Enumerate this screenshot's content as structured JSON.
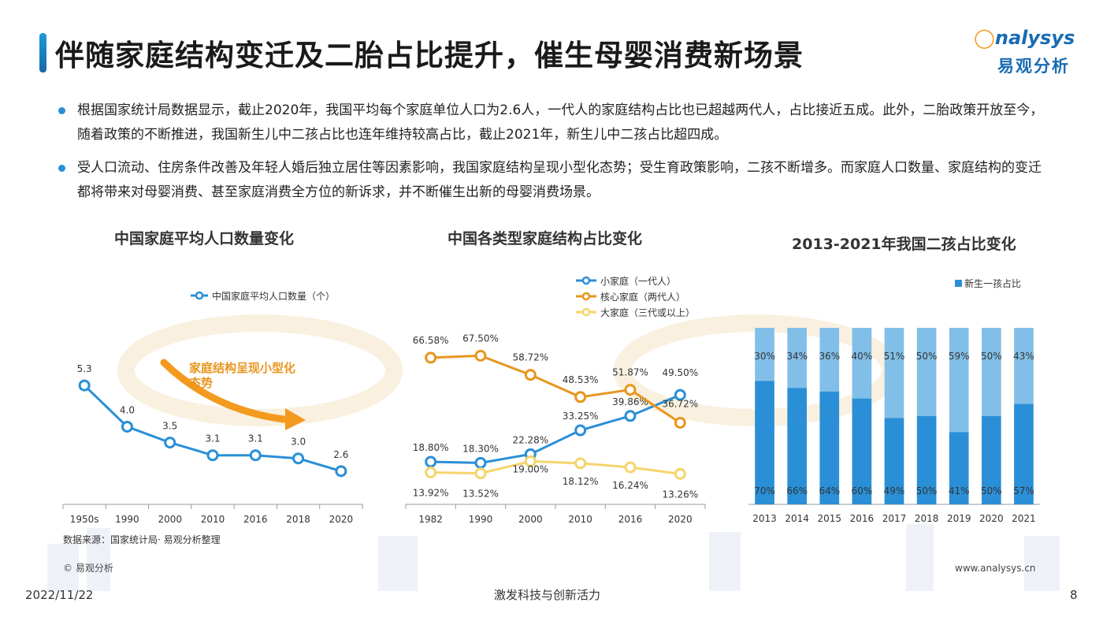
{
  "header": {
    "title": "伴随家庭结构变迁及二胎占比提升，催生母婴消费新场景",
    "logo_en": "nalysys",
    "logo_cn": "易观分析"
  },
  "bullets": [
    "根据国家统计局数据显示，截止2020年，我国平均每个家庭单位人口为2.6人，一代人的家庭结构占比也已超越两代人，占比接近五成。此外，二胎政策开放至今，随着政策的不断推进，我国新生儿中二孩占比也连年维持较高占比，截止2021年，新生儿中二孩占比超四成。",
    "受人口流动、住房条件改善及年轻人婚后独立居住等因素影响，我国家庭结构呈现小型化态势；受生育政策影响，二孩不断增多。而家庭人口数量、家庭结构的变迁都将带来对母婴消费、甚至家庭消费全方位的新诉求，并不断催生出新的母婴消费场景。"
  ],
  "colors": {
    "blue": "#2a8fd6",
    "orange": "#e8961e",
    "yellow": "#f6d46b",
    "light_blue": "#82bfe8",
    "dark_blue": "#2a8fd6"
  },
  "chart_data": [
    {
      "type": "line",
      "title": "中国家庭平均人口数量变化",
      "categories": [
        "1950s",
        "1990",
        "2000",
        "2010",
        "2016",
        "2018",
        "2020"
      ],
      "series": [
        {
          "name": "中国家庭平均人口数量（个）",
          "values": [
            5.3,
            4.0,
            3.5,
            3.1,
            3.1,
            3.0,
            2.6
          ],
          "labels": [
            "5.3",
            "4.0",
            "3.5",
            "3.1",
            "3.1",
            "3.0",
            "2.6"
          ]
        }
      ],
      "annotation": "家庭结构呈现小型化态势",
      "source": "数据来源：国家统计局· 易观分析整理"
    },
    {
      "type": "line",
      "title": "中国各类型家庭结构占比变化",
      "categories": [
        "1982",
        "1990",
        "2000",
        "2010",
        "2016",
        "2020"
      ],
      "series": [
        {
          "name": "小家庭（一代人）",
          "values": [
            18.8,
            18.3,
            22.28,
            33.25,
            39.86,
            49.5
          ],
          "labels": [
            "18.80%",
            "18.30%",
            "22.28%",
            "33.25%",
            "39.86%",
            "49.50%"
          ]
        },
        {
          "name": "核心家庭（两代人）",
          "values": [
            66.58,
            67.5,
            58.72,
            48.53,
            51.87,
            36.72
          ],
          "labels": [
            "66.58%",
            "67.50%",
            "58.72%",
            "48.53%",
            "51.87%",
            "36.72%"
          ]
        },
        {
          "name": "大家庭（三代或以上）",
          "values": [
            13.92,
            13.52,
            19.0,
            18.12,
            16.24,
            13.26
          ],
          "labels": [
            "13.92%",
            "13.52%",
            "19.00%",
            "18.12%",
            "16.24%",
            "13.26%"
          ]
        }
      ]
    },
    {
      "type": "bar",
      "stacked": true,
      "title": "2013-2021年我国二孩占比变化",
      "categories": [
        "2013",
        "2014",
        "2015",
        "2016",
        "2017",
        "2018",
        "2019",
        "2020",
        "2021"
      ],
      "series": [
        {
          "name": "新生一孩占比",
          "values": [
            70,
            66,
            64,
            60,
            49,
            50,
            41,
            50,
            57
          ],
          "labels": [
            "70%",
            "66%",
            "64%",
            "60%",
            "49%",
            "50%",
            "41%",
            "50%",
            "57%"
          ]
        },
        {
          "values": [
            30,
            34,
            36,
            40,
            51,
            50,
            59,
            50,
            43
          ],
          "labels": [
            "30%",
            "34%",
            "36%",
            "40%",
            "51%",
            "50%",
            "59%",
            "50%",
            "43%"
          ]
        }
      ],
      "ylim": [
        0,
        100
      ]
    }
  ],
  "footer": {
    "copyright": "© 易观分析",
    "website": "www.analysys.cn",
    "date": "2022/11/22",
    "slogan": "激发科技与创新活力",
    "page": "8"
  }
}
